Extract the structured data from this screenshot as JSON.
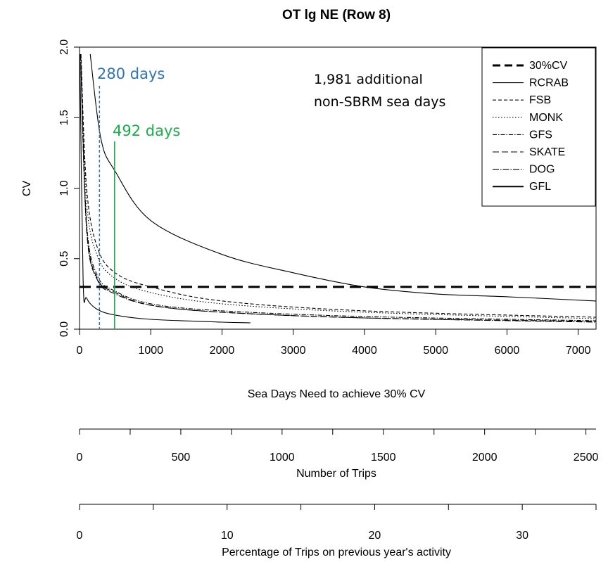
{
  "chart_data": {
    "type": "line",
    "title": "OT lg NE (Row 8)",
    "xlabel": "Sea Days Need to achieve 30% CV",
    "ylabel": "CV",
    "xlim": [
      0,
      7250
    ],
    "ylim": [
      0,
      2.0
    ],
    "x_ticks": [
      "0",
      "1000",
      "2000",
      "3000",
      "4000",
      "5000",
      "6000",
      "7000"
    ],
    "y_ticks": [
      "0.0",
      "0.5",
      "1.0",
      "1.5",
      "2.0"
    ],
    "grid": false,
    "legend_position": "top-right",
    "reference_line": {
      "label": "30%CV",
      "y": 0.3
    },
    "series": [
      {
        "name": "RCRAB",
        "style": "solid-thin",
        "points": [
          [
            150,
            1.95
          ],
          [
            300,
            1.35
          ],
          [
            500,
            1.12
          ],
          [
            1000,
            0.77
          ],
          [
            2000,
            0.53
          ],
          [
            3000,
            0.4
          ],
          [
            4000,
            0.3
          ],
          [
            5000,
            0.25
          ],
          [
            6000,
            0.23
          ],
          [
            7250,
            0.2
          ]
        ]
      },
      {
        "name": "FSB",
        "style": "dashed",
        "points": [
          [
            20,
            1.95
          ],
          [
            100,
            1.0
          ],
          [
            250,
            0.58
          ],
          [
            500,
            0.4
          ],
          [
            1000,
            0.3
          ],
          [
            2000,
            0.2
          ],
          [
            4000,
            0.13
          ],
          [
            7250,
            0.085
          ]
        ]
      },
      {
        "name": "MONK",
        "style": "dotted",
        "points": [
          [
            20,
            1.95
          ],
          [
            100,
            0.9
          ],
          [
            250,
            0.52
          ],
          [
            500,
            0.36
          ],
          [
            1000,
            0.26
          ],
          [
            2000,
            0.18
          ],
          [
            4000,
            0.12
          ],
          [
            7250,
            0.075
          ]
        ]
      },
      {
        "name": "GFS",
        "style": "dash-dot",
        "points": [
          [
            15,
            1.95
          ],
          [
            100,
            0.75
          ],
          [
            250,
            0.38
          ],
          [
            500,
            0.27
          ],
          [
            1000,
            0.18
          ],
          [
            2000,
            0.13
          ],
          [
            4000,
            0.09
          ],
          [
            7250,
            0.06
          ]
        ]
      },
      {
        "name": "SKATE",
        "style": "long-dash",
        "points": [
          [
            15,
            1.95
          ],
          [
            100,
            0.72
          ],
          [
            250,
            0.36
          ],
          [
            500,
            0.26
          ],
          [
            1000,
            0.17
          ],
          [
            2000,
            0.12
          ],
          [
            4000,
            0.08
          ],
          [
            7250,
            0.055
          ]
        ]
      },
      {
        "name": "DOG",
        "style": "long-dash-dot",
        "points": [
          [
            15,
            1.95
          ],
          [
            100,
            0.7
          ],
          [
            250,
            0.35
          ],
          [
            500,
            0.25
          ],
          [
            1000,
            0.17
          ],
          [
            2000,
            0.12
          ],
          [
            4000,
            0.08
          ],
          [
            7250,
            0.05
          ]
        ]
      },
      {
        "name": "GFL",
        "style": "solid-thin",
        "points": [
          [
            5,
            1.95
          ],
          [
            50,
            0.35
          ],
          [
            100,
            0.22
          ],
          [
            250,
            0.14
          ],
          [
            500,
            0.1
          ],
          [
            1000,
            0.07
          ],
          [
            2000,
            0.05
          ],
          [
            2400,
            0.045
          ]
        ]
      }
    ],
    "annotations": [
      {
        "text": "280 days",
        "x": 280,
        "color": "#2e75b6",
        "line": "dashed"
      },
      {
        "text": "492 days",
        "x": 492,
        "color": "#1aaf4b",
        "line": "solid"
      },
      {
        "text_lines": [
          "1,981 additional",
          "non-SBRM sea days"
        ],
        "color": "#000000"
      }
    ],
    "secondary_axes": [
      {
        "label": "Number of Trips",
        "range": [
          0,
          2550
        ],
        "ticks": [
          "0",
          "500",
          "1000",
          "1500",
          "2000",
          "2500"
        ],
        "minor_step": 250
      },
      {
        "label": "Percentage of Trips on previous year's activity",
        "range": [
          0,
          35
        ],
        "ticks": [
          "0",
          "10",
          "20",
          "30"
        ],
        "minor_step": 5
      }
    ]
  }
}
